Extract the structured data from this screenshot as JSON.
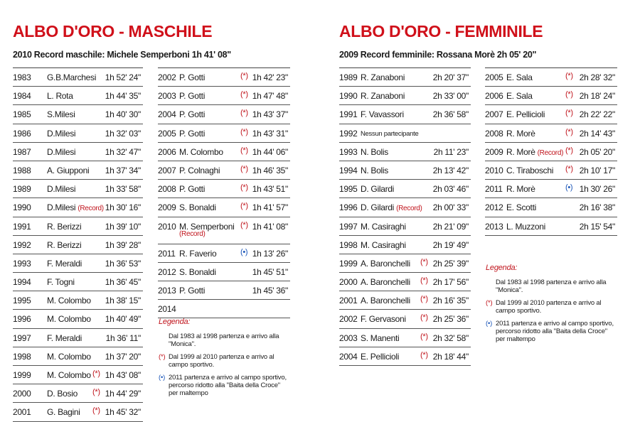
{
  "male": {
    "title": "ALBO D'ORO - MASCHILE",
    "record": "2010 Record maschile: Michele Semperboni 1h 41' 08\"",
    "col1": [
      {
        "year": "1983",
        "name": "G.B.Marchesi",
        "time": "1h 52' 24\""
      },
      {
        "year": "1984",
        "name": "L. Rota",
        "time": "1h 44' 35\""
      },
      {
        "year": "1985",
        "name": "S.Milesi",
        "time": "1h 40' 30\""
      },
      {
        "year": "1986",
        "name": "D.Milesi",
        "time": "1h 32' 03\""
      },
      {
        "year": "1987",
        "name": "D.Milesi",
        "time": "1h 32' 47\""
      },
      {
        "year": "1988",
        "name": "A. Giupponi",
        "time": "1h 37' 34\""
      },
      {
        "year": "1989",
        "name": "D.Milesi",
        "time": "1h 33' 58\""
      },
      {
        "year": "1990",
        "name": "D.Milesi",
        "record": "(Record)",
        "time": "1h 30' 16\""
      },
      {
        "year": "1991",
        "name": "R. Berizzi",
        "time": "1h 39' 10\""
      },
      {
        "year": "1992",
        "name": "R. Berizzi",
        "time": "1h 39' 28\""
      },
      {
        "year": "1993",
        "name": "F. Meraldi",
        "time": "1h 36' 53\""
      },
      {
        "year": "1994",
        "name": "F. Togni",
        "time": "1h 36' 45\""
      },
      {
        "year": "1995",
        "name": "M. Colombo",
        "time": "1h 38' 15\""
      },
      {
        "year": "1996",
        "name": "M. Colombo",
        "time": "1h 40' 49\""
      },
      {
        "year": "1997",
        "name": "F. Meraldi",
        "time": "1h 36' 11\""
      },
      {
        "year": "1998",
        "name": "M. Colombo",
        "time": "1h 37' 20\""
      },
      {
        "year": "1999",
        "name": "M. Colombo",
        "mark": "(*)",
        "time": "1h 43' 08\""
      },
      {
        "year": "2000",
        "name": "D. Bosio",
        "mark": "(*)",
        "time": "1h 44' 29\""
      },
      {
        "year": "2001",
        "name": "G. Bagini",
        "mark": "(*)",
        "time": "1h 45' 32\""
      }
    ],
    "col2": [
      {
        "year": "2002",
        "name": "P. Gotti",
        "mark": "(*)",
        "time": "1h 42' 23\""
      },
      {
        "year": "2003",
        "name": "P. Gotti",
        "mark": "(*)",
        "time": "1h 47' 48\""
      },
      {
        "year": "2004",
        "name": "P. Gotti",
        "mark": "(*)",
        "time": "1h 43' 37\""
      },
      {
        "year": "2005",
        "name": "P. Gotti",
        "mark": "(*)",
        "time": "1h 43' 31\""
      },
      {
        "year": "2006",
        "name": "M. Colombo",
        "mark": "(*)",
        "time": "1h 44' 06\""
      },
      {
        "year": "2007",
        "name": "P. Colnaghi",
        "mark": "(*)",
        "time": "1h 46' 35\""
      },
      {
        "year": "2008",
        "name": "P. Gotti",
        "mark": "(*)",
        "time": "1h 43' 51\""
      },
      {
        "year": "2009",
        "name": "S. Bonaldi",
        "mark": "(*)",
        "time": "1h 41' 57\""
      },
      {
        "year": "2010",
        "name": "M. Semperboni",
        "record_below": "(Record)",
        "mark": "(*)",
        "time": "1h 41' 08\""
      },
      {
        "year": "2011",
        "name": "R. Faverio",
        "mark": "(•)",
        "mark_blue": true,
        "time": "1h 13' 26\""
      },
      {
        "year": "2012",
        "name": "S. Bonaldi",
        "time": "1h 45' 51\""
      },
      {
        "year": "2013",
        "name": "P. Gotti",
        "time": "1h 45' 36\""
      },
      {
        "year": "2014",
        "name": "",
        "time": ""
      }
    ],
    "legend": {
      "title": "Legenda:",
      "items": [
        {
          "mark": "",
          "text": "Dal 1983 al 1998 partenza e arrivo alla \"Monica\"."
        },
        {
          "mark": "(*)",
          "text": "Dal 1999 al 2010 partenza e arrivo al campo sportivo."
        },
        {
          "mark": "(•)",
          "blue": true,
          "text": "2011 partenza e arrivo al campo sportivo, percorso ridotto alla \"Baita della Croce\" per maltempo"
        }
      ]
    }
  },
  "female": {
    "title": "ALBO D'ORO - FEMMINILE",
    "record": "2009 Record femminile: Rossana Morè 2h 05' 20\"",
    "col1": [
      {
        "year": "1989",
        "name": "R. Zanaboni",
        "time": "2h 20' 37\""
      },
      {
        "year": "1990",
        "name": "R. Zanaboni",
        "time": "2h 33' 00\""
      },
      {
        "year": "1991",
        "name": "F. Vavassori",
        "time": "2h 36' 58\""
      },
      {
        "year": "1992",
        "name": "Nessun partecipante",
        "small": true,
        "time": ""
      },
      {
        "year": "1993",
        "name": "N. Bolis",
        "time": "2h 11' 23\""
      },
      {
        "year": "1994",
        "name": "N. Bolis",
        "time": "2h 13' 42\""
      },
      {
        "year": "1995",
        "name": "D. Gilardi",
        "time": "2h 03' 46\""
      },
      {
        "year": "1996",
        "name": "D. Gilardi",
        "record": "(Record)",
        "time": "2h 00' 33\""
      },
      {
        "year": "1997",
        "name": "M. Casiraghi",
        "time": "2h 21' 09\""
      },
      {
        "year": "1998",
        "name": "M. Casiraghi",
        "time": "2h 19' 49\""
      },
      {
        "year": "1999",
        "name": "A. Baronchelli",
        "mark": "(*)",
        "time": "2h 25' 39\""
      },
      {
        "year": "2000",
        "name": "A. Baronchelli",
        "mark": "(*)",
        "time": "2h 17' 56\""
      },
      {
        "year": "2001",
        "name": "A. Baronchelli",
        "mark": "(*)",
        "time": "2h 16' 35\""
      },
      {
        "year": "2002",
        "name": "F. Gervasoni",
        "mark": "(*)",
        "time": "2h 25' 36\""
      },
      {
        "year": "2003",
        "name": "S. Manenti",
        "mark": "(*)",
        "time": "2h 32' 58\""
      },
      {
        "year": "2004",
        "name": "E. Pellicioli",
        "mark": "(*)",
        "time": "2h 18' 44\""
      }
    ],
    "col2": [
      {
        "year": "2005",
        "name": "E. Sala",
        "mark": "(*)",
        "time": "2h 28' 32\""
      },
      {
        "year": "2006",
        "name": "E. Sala",
        "mark": "(*)",
        "time": "2h 18' 24\""
      },
      {
        "year": "2007",
        "name": "E. Pellicioli",
        "mark": "(*)",
        "time": "2h 22' 22\""
      },
      {
        "year": "2008",
        "name": "R. Morè",
        "mark": "(*)",
        "time": "2h 14' 43\""
      },
      {
        "year": "2009",
        "name": "R. Morè",
        "record": "(Record)",
        "mark": "(*)",
        "time": "2h 05' 20\""
      },
      {
        "year": "2010",
        "name": "C. Tiraboschi",
        "mark": "(*)",
        "time": "2h 10' 17\""
      },
      {
        "year": "2011",
        "name": "R. Morè",
        "mark": "(•)",
        "mark_blue": true,
        "time": "1h 30' 26\""
      },
      {
        "year": "2012",
        "name": "E. Scotti",
        "time": "2h 16' 38\""
      },
      {
        "year": "2013",
        "name": "L. Muzzoni",
        "time": "2h 15' 54\""
      }
    ],
    "legend": {
      "title": "Legenda:",
      "items": [
        {
          "mark": "",
          "text": "Dal 1983 al 1998 partenza e arrivo alla \"Monica\"."
        },
        {
          "mark": "(*)",
          "text": "Dal 1999 al 2010 partenza e arrivo al campo sportivo."
        },
        {
          "mark": "(•)",
          "blue": true,
          "text": "2011 partenza e arrivo al campo sportivo, percorso ridotto alla \"Baita della Croce\" per maltempo"
        }
      ]
    }
  }
}
